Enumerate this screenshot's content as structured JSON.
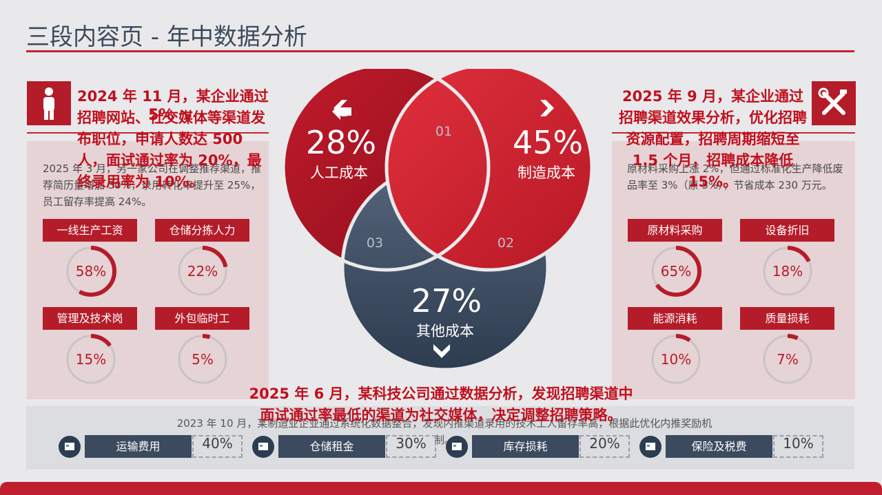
{
  "page": {
    "title": "三段内容页 - 年中数据分析"
  },
  "left": {
    "heading": "2024 年 11 月，某企业通过招聘网站、社交媒体等渠道发布职位，申请人数达 500 人，面试通过率为 20%，最终录用率为 10%。",
    "overlay_arrow": "5%  ↘",
    "body": "2025 年 3 月，另一家公司在调整推荐渠道，推荐简历量增加 30%，录用转化率提升至 25%，员工留存率提高 24%。",
    "items": [
      {
        "label": "一线生产工资",
        "value": "58%",
        "fraction": 0.58
      },
      {
        "label": "仓储分拣人力",
        "value": "22%",
        "fraction": 0.22
      },
      {
        "label": "管理及技术岗",
        "value": "15%",
        "fraction": 0.15
      },
      {
        "label": "外包临时工",
        "value": "5%",
        "fraction": 0.05
      }
    ]
  },
  "right": {
    "heading": "2025 年 9 月，某企业通过招聘渠道效果分析，优化招聘资源配置，招聘周期缩短至 1.5 个月，招聘成本降低 15%。",
    "body": "原材料采购上涨 2%，但通过标准化生产降低废品率至 3%（原 5%），节省成本 230 万元。",
    "items": [
      {
        "label": "原材料采购",
        "value": "65%",
        "fraction": 0.65
      },
      {
        "label": "设备折旧",
        "value": "18%",
        "fraction": 0.18
      },
      {
        "label": "能源消耗",
        "value": "10%",
        "fraction": 0.1
      },
      {
        "label": "质量损耗",
        "value": "7%",
        "fraction": 0.07
      }
    ]
  },
  "venn": {
    "a": {
      "value": "28%",
      "label": "人工成本"
    },
    "b": {
      "value": "45%",
      "label": "制造成本"
    },
    "c": {
      "value": "27%",
      "label": "其他成本"
    },
    "regions": [
      "01",
      "02",
      "03"
    ],
    "colors": {
      "red_dark": "#a01422",
      "red": "#d42634",
      "slate": "#3e4d62"
    }
  },
  "bottom": {
    "heading": "2025 年 6 月，某科技公司通过数据分析，发现招聘渠道中面试通过率最低的渠道为社交媒体，决定调整招聘策略。",
    "body": "2023 年 10 月，某制造业企业通过系统化数据整合，发现内推渠道录用的技术工人留存率高，根据此优化内推奖励机制。",
    "items": [
      {
        "label": "运输费用",
        "value": "40%"
      },
      {
        "label": "仓储租金",
        "value": "30%"
      },
      {
        "label": "库存损耗",
        "value": "20%"
      },
      {
        "label": "保险及税费",
        "value": "10%"
      }
    ]
  },
  "icons": {
    "left": "person-icon",
    "right": "tools-icon",
    "bottom": "chart-card-icon"
  }
}
